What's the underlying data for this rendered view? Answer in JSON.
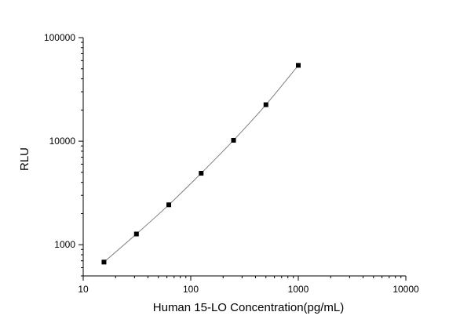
{
  "chart_data": {
    "type": "scatter",
    "title": "",
    "xlabel": "Human 15-LO Concentration(pg/mL)",
    "ylabel": "RLU",
    "x_scale": "log",
    "y_scale": "log",
    "xlim": [
      10,
      10000
    ],
    "ylim": [
      500,
      100000
    ],
    "x_ticks": [
      10,
      100,
      1000,
      10000
    ],
    "x_tick_labels": [
      "10",
      "100",
      "1000",
      "10000"
    ],
    "y_ticks": [
      1000,
      10000,
      100000
    ],
    "y_tick_labels": [
      "1000",
      "10000",
      "100000"
    ],
    "grid": false,
    "legend": "none",
    "series": [
      {
        "marker": "square",
        "color": "#000000",
        "fit_line": true,
        "fit_color": "#777777",
        "points": [
          {
            "x": 15.6,
            "y": 680
          },
          {
            "x": 31.25,
            "y": 1270
          },
          {
            "x": 62.5,
            "y": 2430
          },
          {
            "x": 125,
            "y": 4900
          },
          {
            "x": 250,
            "y": 10200
          },
          {
            "x": 500,
            "y": 22500
          },
          {
            "x": 1000,
            "y": 54000
          }
        ]
      }
    ]
  }
}
